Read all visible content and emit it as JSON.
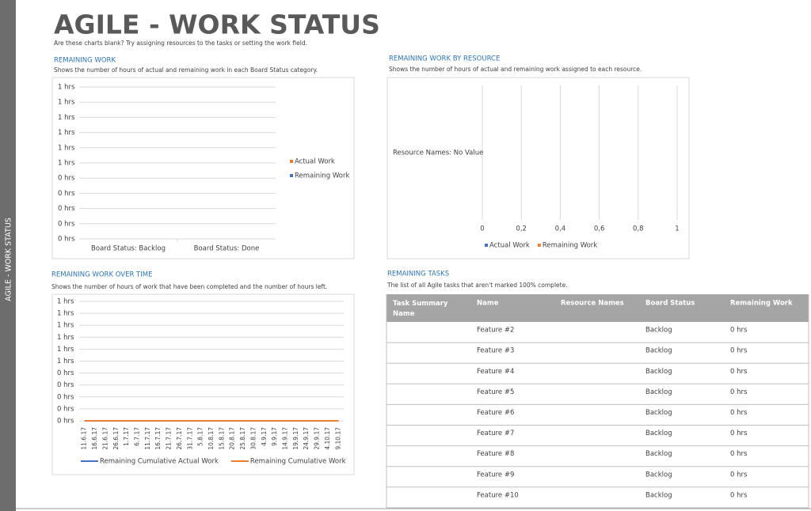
{
  "sidebar": "AGILE - WORK STATUS",
  "header": {
    "title": "AGILE - WORK STATUS",
    "subtitle": "Are these charts blank? Try assigning resources to the tasks or setting the work field."
  },
  "chart_data": [
    {
      "type": "bar",
      "title": "REMAINING WORK",
      "subtitle": "Shows the number of hours of actual and remaining work in each Board Status category.",
      "categories": [
        "Board Status: Backlog",
        "Board Status: Done"
      ],
      "series": [
        {
          "name": "Actual Work",
          "color": "#ed7d31",
          "values": [
            0,
            0
          ]
        },
        {
          "name": "Remaining Work",
          "color": "#4472c4",
          "values": [
            0,
            0
          ]
        }
      ],
      "ylim": [
        0,
        1
      ],
      "yticks": [
        {
          "value": 1,
          "label": "1 hrs"
        },
        {
          "value": 0.9,
          "label": "1 hrs"
        },
        {
          "value": 0.8,
          "label": "1 hrs"
        },
        {
          "value": 0.7,
          "label": "1 hrs"
        },
        {
          "value": 0.6,
          "label": "1 hrs"
        },
        {
          "value": 0.5,
          "label": "1 hrs"
        },
        {
          "value": 0.4,
          "label": "0 hrs"
        },
        {
          "value": 0.3,
          "label": "0 hrs"
        },
        {
          "value": 0.2,
          "label": "0 hrs"
        },
        {
          "value": 0.1,
          "label": "0 hrs"
        },
        {
          "value": 0,
          "label": "0 hrs"
        }
      ],
      "grid": true,
      "legend": "right"
    },
    {
      "type": "barh",
      "title": "REMAINING WORK BY RESOURCE",
      "subtitle": "Shows the number of hours of actual and remaining work assigned to each resource.",
      "categories": [
        "Resource Names: No Value"
      ],
      "series": [
        {
          "name": "Actual Work",
          "color": "#4472c4",
          "values": [
            0
          ]
        },
        {
          "name": "Remaining Work",
          "color": "#ed7d31",
          "values": [
            0
          ]
        }
      ],
      "xlim": [
        0,
        1
      ],
      "xticks": [
        0,
        {
          "value": 0.2,
          "label": "0,2"
        },
        {
          "value": 0.4,
          "label": "0,4"
        },
        {
          "value": 0.6,
          "label": "0,6"
        },
        {
          "value": 0.8,
          "label": "0,8"
        },
        1
      ],
      "grid": true,
      "legend": "bottom"
    },
    {
      "type": "line",
      "title": "REMAINING WORK OVER TIME",
      "subtitle": "Shows the number of hours of work that have been completed and the number of hours left.",
      "categories": [
        "11.6.17",
        "16.6.17",
        "21.6.17",
        "26.6.17",
        "1.7.17",
        "6.7.17",
        "11.7.17",
        "16.7.17",
        "21.7.17",
        "26.7.17",
        "31.7.17",
        "5.8.17",
        "10.8.17",
        "15.8.17",
        "20.8.17",
        "25.8.17",
        "30.8.17",
        "4.9.17",
        "9.9.17",
        "14.9.17",
        "19.9.17",
        "24.9.17",
        "29.9.17",
        "4.10.17",
        "9.10.17"
      ],
      "series": [
        {
          "name": "Remaining Cumulative Actual Work",
          "color": "#4472c4",
          "values": [
            0,
            0,
            0,
            0,
            0,
            0,
            0,
            0,
            0,
            0,
            0,
            0,
            0,
            0,
            0,
            0,
            0,
            0,
            0,
            0,
            0,
            0,
            0,
            0,
            0
          ]
        },
        {
          "name": "Remaining Cumulative Work",
          "color": "#ed7d31",
          "values": [
            0,
            0,
            0,
            0,
            0,
            0,
            0,
            0,
            0,
            0,
            0,
            0,
            0,
            0,
            0,
            0,
            0,
            0,
            0,
            0,
            0,
            0,
            0,
            0,
            0
          ]
        }
      ],
      "ylim": [
        0,
        1
      ],
      "yticks": [
        {
          "value": 1,
          "label": "1 hrs"
        },
        {
          "value": 0.9,
          "label": "1 hrs"
        },
        {
          "value": 0.8,
          "label": "1 hrs"
        },
        {
          "value": 0.7,
          "label": "1 hrs"
        },
        {
          "value": 0.6,
          "label": "1 hrs"
        },
        {
          "value": 0.5,
          "label": "1 hrs"
        },
        {
          "value": 0.4,
          "label": "0 hrs"
        },
        {
          "value": 0.3,
          "label": "0 hrs"
        },
        {
          "value": 0.2,
          "label": "0 hrs"
        },
        {
          "value": 0.1,
          "label": "0 hrs"
        },
        {
          "value": 0,
          "label": "0 hrs"
        }
      ],
      "grid": true,
      "legend": "bottom"
    }
  ],
  "remaining_tasks": {
    "title": "REMAINING TASKS",
    "description": "The list of all Agile tasks that aren't marked 100% complete.",
    "columns": [
      "Task Summary Name",
      "Name",
      "Resource Names",
      "Board Status",
      "Remaining Work"
    ],
    "rows": [
      {
        "name": "Feature #2",
        "board_status": "Backlog",
        "remaining_work": "0 hrs"
      },
      {
        "name": "Feature #3",
        "board_status": "Backlog",
        "remaining_work": "0 hrs"
      },
      {
        "name": "Feature #4",
        "board_status": "Backlog",
        "remaining_work": "0 hrs"
      },
      {
        "name": "Feature #5",
        "board_status": "Backlog",
        "remaining_work": "0 hrs"
      },
      {
        "name": "Feature #6",
        "board_status": "Backlog",
        "remaining_work": "0 hrs"
      },
      {
        "name": "Feature #7",
        "board_status": "Backlog",
        "remaining_work": "0 hrs"
      },
      {
        "name": "Feature #8",
        "board_status": "Backlog",
        "remaining_work": "0 hrs"
      },
      {
        "name": "Feature #9",
        "board_status": "Backlog",
        "remaining_work": "0 hrs"
      },
      {
        "name": "Feature #10",
        "board_status": "Backlog",
        "remaining_work": "0 hrs"
      }
    ]
  }
}
